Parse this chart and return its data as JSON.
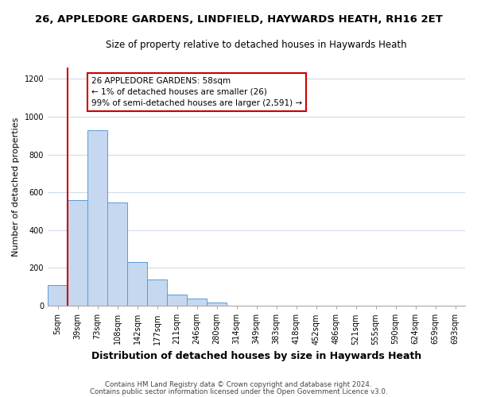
{
  "title": "26, APPLEDORE GARDENS, LINDFIELD, HAYWARDS HEATH, RH16 2ET",
  "subtitle": "Size of property relative to detached houses in Haywards Heath",
  "xlabel": "Distribution of detached houses by size in Haywards Heath",
  "ylabel": "Number of detached properties",
  "bin_labels": [
    "5sqm",
    "39sqm",
    "73sqm",
    "108sqm",
    "142sqm",
    "177sqm",
    "211sqm",
    "246sqm",
    "280sqm",
    "314sqm",
    "349sqm",
    "383sqm",
    "418sqm",
    "452sqm",
    "486sqm",
    "521sqm",
    "555sqm",
    "590sqm",
    "624sqm",
    "659sqm",
    "693sqm"
  ],
  "bar_values": [
    110,
    560,
    930,
    545,
    230,
    140,
    60,
    38,
    18,
    0,
    0,
    0,
    0,
    0,
    0,
    0,
    0,
    0,
    0,
    0,
    0
  ],
  "bar_color": "#c5d8f0",
  "bar_edge_color": "#5b9bd5",
  "ylim": [
    0,
    1260
  ],
  "yticks": [
    0,
    200,
    400,
    600,
    800,
    1000,
    1200
  ],
  "vline_x_index": 1.0,
  "vline_color": "#cc0000",
  "annotation_text": "26 APPLEDORE GARDENS: 58sqm\n← 1% of detached houses are smaller (26)\n99% of semi-detached houses are larger (2,591) →",
  "annotation_box_color": "#ffffff",
  "annotation_box_edgecolor": "#cc0000",
  "footnote1": "Contains HM Land Registry data © Crown copyright and database right 2024.",
  "footnote2": "Contains public sector information licensed under the Open Government Licence v3.0.",
  "bg_color": "#ffffff",
  "grid_color": "#d0dce8",
  "title_fontsize": 9.5,
  "subtitle_fontsize": 8.5,
  "ylabel_fontsize": 8,
  "xlabel_fontsize": 9,
  "tick_fontsize": 7,
  "annot_fontsize": 7.5,
  "footnote_fontsize": 6.2
}
